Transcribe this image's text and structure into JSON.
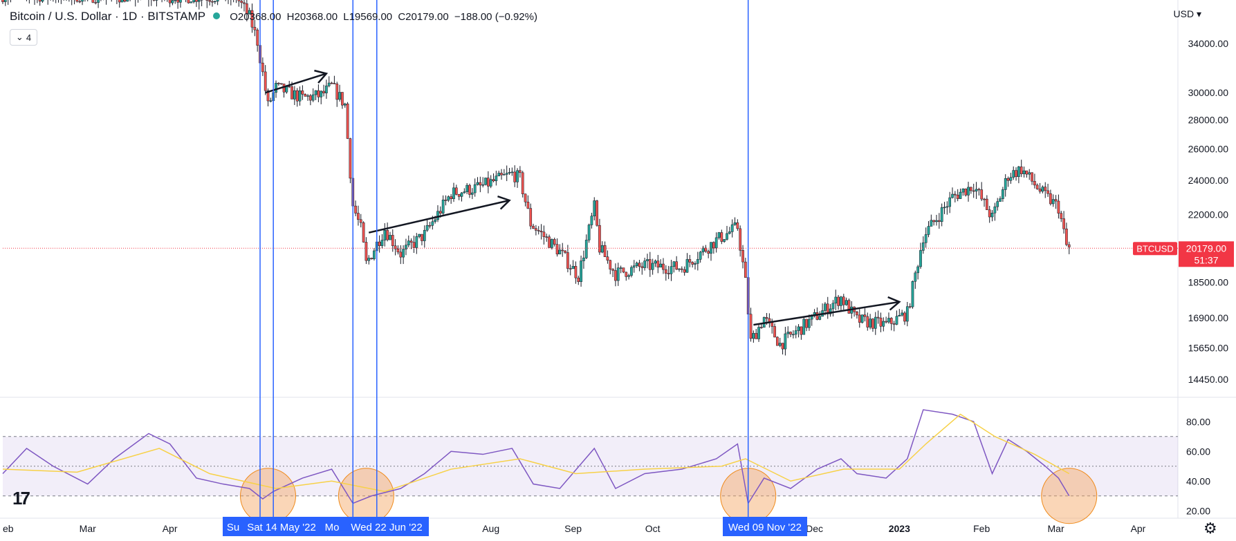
{
  "header": {
    "title": "Bitcoin / U.S. Dollar · 1D · BITSTAMP",
    "open": "O20368.00",
    "high": "H20368.00",
    "low": "L19569.00",
    "close": "C20179.00",
    "change": "−188.00 (−0.92%)"
  },
  "indicator_toggle": {
    "icon": "chevron-down-icon",
    "count": "4"
  },
  "currency": "USD ▾",
  "price_axis": [
    "34000.00",
    "30000.00",
    "28000.00",
    "26000.00",
    "24000.00",
    "22000.00",
    "18500.00",
    "16900.00",
    "15650.00",
    "14450.00"
  ],
  "last_price": {
    "symbol": "BTCUSD",
    "price": "20179.00",
    "countdown": "51:37"
  },
  "rsi_axis": [
    "80.00",
    "60.00",
    "40.00",
    "20.00"
  ],
  "time_axis": [
    "eb",
    "Mar",
    "Apr",
    "Aug",
    "Sep",
    "Oct",
    "Dec",
    "2023",
    "Feb",
    "Mar",
    "Apr"
  ],
  "time_labels_partial": [
    "Su",
    "Mo"
  ],
  "date_labels": [
    "Sat 14 May '22",
    "Wed 22 Jun '22",
    "Wed 09 Nov '22"
  ],
  "logo": "17",
  "settings_icon": "gear-icon",
  "colors": {
    "up": "#26a69a",
    "down": "#ef5350",
    "rsi": "#7e57c2",
    "rsi_ma": "#f7d147",
    "vline": "#2962ff",
    "highlight": "#f4a460",
    "price_line": "#f23645"
  },
  "chart_data": {
    "type": "candlestick",
    "title": "Bitcoin / U.S. Dollar · 1D · BITSTAMP",
    "yscale": "log",
    "ylim": [
      13800,
      38000
    ],
    "x_range": [
      "2022-02-01",
      "2023-04-20"
    ],
    "close_path": [
      [
        "2022-02-01",
        38500
      ],
      [
        "2022-04-30",
        38300
      ],
      [
        "2022-05-05",
        36400
      ],
      [
        "2022-05-08",
        34200
      ],
      [
        "2022-05-12",
        29000
      ],
      [
        "2022-05-15",
        30400
      ],
      [
        "2022-05-25",
        29600
      ],
      [
        "2022-06-01",
        29800
      ],
      [
        "2022-06-05",
        30500
      ],
      [
        "2022-06-10",
        29100
      ],
      [
        "2022-06-13",
        22500
      ],
      [
        "2022-06-16",
        21200
      ],
      [
        "2022-06-18",
        19400
      ],
      [
        "2022-06-25",
        21200
      ],
      [
        "2022-07-01",
        19900
      ],
      [
        "2022-07-10",
        20900
      ],
      [
        "2022-07-20",
        23200
      ],
      [
        "2022-07-31",
        23600
      ],
      [
        "2022-08-12",
        24400
      ],
      [
        "2022-08-15",
        24100
      ],
      [
        "2022-08-19",
        21500
      ],
      [
        "2022-08-30",
        20000
      ],
      [
        "2022-09-06",
        18800
      ],
      [
        "2022-09-12",
        22400
      ],
      [
        "2022-09-14",
        20200
      ],
      [
        "2022-09-20",
        18900
      ],
      [
        "2022-10-01",
        19300
      ],
      [
        "2022-10-15",
        19200
      ],
      [
        "2022-10-28",
        20600
      ],
      [
        "2022-11-05",
        21300
      ],
      [
        "2022-11-08",
        18500
      ],
      [
        "2022-11-10",
        15900
      ],
      [
        "2022-11-15",
        16900
      ],
      [
        "2022-11-21",
        15800
      ],
      [
        "2022-12-05",
        17000
      ],
      [
        "2022-12-14",
        17800
      ],
      [
        "2022-12-20",
        16800
      ],
      [
        "2022-12-31",
        16600
      ],
      [
        "2023-01-08",
        17100
      ],
      [
        "2023-01-14",
        20800
      ],
      [
        "2023-01-25",
        23000
      ],
      [
        "2023-02-02",
        23700
      ],
      [
        "2023-02-09",
        21800
      ],
      [
        "2023-02-15",
        24300
      ],
      [
        "2023-02-20",
        24700
      ],
      [
        "2023-02-28",
        23200
      ],
      [
        "2023-03-06",
        22400
      ],
      [
        "2023-03-09",
        20300
      ],
      [
        "2023-03-10",
        20179
      ]
    ],
    "vertical_lines": [
      "2022-05-09",
      "2022-05-14",
      "2022-06-13",
      "2022-06-22",
      "2022-11-09"
    ],
    "trend_arrows": [
      [
        [
          "2022-05-11",
          30000
        ],
        [
          "2022-06-03",
          31500
        ]
      ],
      [
        [
          "2022-06-19",
          21000
        ],
        [
          "2022-08-11",
          22800
        ]
      ],
      [
        [
          "2022-11-11",
          16600
        ],
        [
          "2023-01-05",
          17600
        ]
      ]
    ],
    "last_price": 20179,
    "rsi": {
      "ylim": [
        15,
        95
      ],
      "bands": [
        30,
        50,
        70
      ],
      "points": [
        [
          "2022-02-01",
          45
        ],
        [
          "2022-02-10",
          62
        ],
        [
          "2022-02-20",
          50
        ],
        [
          "2022-03-05",
          38
        ],
        [
          "2022-03-15",
          55
        ],
        [
          "2022-03-28",
          72
        ],
        [
          "2022-04-05",
          65
        ],
        [
          "2022-04-15",
          42
        ],
        [
          "2022-04-25",
          38
        ],
        [
          "2022-05-05",
          35
        ],
        [
          "2022-05-10",
          28
        ],
        [
          "2022-05-14",
          33
        ],
        [
          "2022-05-25",
          42
        ],
        [
          "2022-06-05",
          48
        ],
        [
          "2022-06-13",
          25
        ],
        [
          "2022-06-20",
          30
        ],
        [
          "2022-07-01",
          35
        ],
        [
          "2022-07-10",
          45
        ],
        [
          "2022-07-20",
          60
        ],
        [
          "2022-08-01",
          58
        ],
        [
          "2022-08-12",
          62
        ],
        [
          "2022-08-20",
          38
        ],
        [
          "2022-08-30",
          35
        ],
        [
          "2022-09-12",
          62
        ],
        [
          "2022-09-20",
          35
        ],
        [
          "2022-10-01",
          45
        ],
        [
          "2022-10-15",
          48
        ],
        [
          "2022-10-28",
          55
        ],
        [
          "2022-11-05",
          65
        ],
        [
          "2022-11-09",
          25
        ],
        [
          "2022-11-15",
          42
        ],
        [
          "2022-11-25",
          35
        ],
        [
          "2022-12-05",
          48
        ],
        [
          "2022-12-14",
          55
        ],
        [
          "2022-12-20",
          45
        ],
        [
          "2022-12-31",
          42
        ],
        [
          "2023-01-08",
          55
        ],
        [
          "2023-01-14",
          88
        ],
        [
          "2023-01-25",
          85
        ],
        [
          "2023-02-02",
          80
        ],
        [
          "2023-02-09",
          45
        ],
        [
          "2023-02-15",
          68
        ],
        [
          "2023-02-22",
          60
        ],
        [
          "2023-03-01",
          50
        ],
        [
          "2023-03-06",
          42
        ],
        [
          "2023-03-10",
          30
        ]
      ],
      "ma_points": [
        [
          "2022-02-01",
          48
        ],
        [
          "2022-03-01",
          46
        ],
        [
          "2022-04-01",
          62
        ],
        [
          "2022-04-20",
          45
        ],
        [
          "2022-05-15",
          35
        ],
        [
          "2022-06-05",
          40
        ],
        [
          "2022-06-25",
          33
        ],
        [
          "2022-07-20",
          48
        ],
        [
          "2022-08-15",
          55
        ],
        [
          "2022-09-05",
          45
        ],
        [
          "2022-10-01",
          48
        ],
        [
          "2022-10-30",
          50
        ],
        [
          "2022-11-08",
          55
        ],
        [
          "2022-11-25",
          40
        ],
        [
          "2022-12-15",
          48
        ],
        [
          "2023-01-05",
          48
        ],
        [
          "2023-01-15",
          65
        ],
        [
          "2023-01-28",
          85
        ],
        [
          "2023-02-10",
          70
        ],
        [
          "2023-02-25",
          58
        ],
        [
          "2023-03-10",
          45
        ]
      ],
      "highlights": [
        "2022-05-12",
        "2022-06-18",
        "2022-11-09",
        "2023-03-10"
      ]
    }
  }
}
